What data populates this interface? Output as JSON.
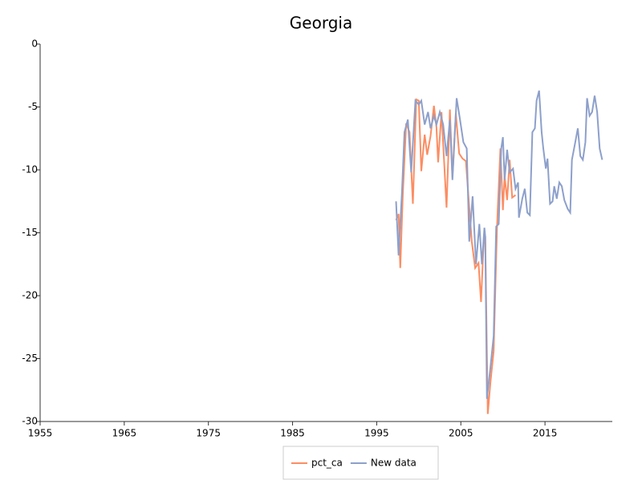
{
  "chart_data": {
    "type": "line",
    "title": "Georgia",
    "xlim": [
      1955,
      2023
    ],
    "xticks": [
      1955,
      1965,
      1975,
      1985,
      1995,
      2005,
      2015
    ],
    "ylim": [
      -30,
      0
    ],
    "yticks": [
      0,
      -5,
      -10,
      -15,
      -20,
      -25,
      -30
    ],
    "series": [
      {
        "name": "pct_ca",
        "color": "#fc8d62",
        "x": [
          1997.3,
          1997.6,
          1997.8,
          1998.1,
          1998.5,
          1998.9,
          1999.3,
          1999.7,
          2000.0,
          2000.3,
          2000.7,
          2001.0,
          2001.4,
          2001.8,
          2002.1,
          2002.3,
          2002.7,
          2003.3,
          2003.7,
          2004.0,
          2004.4,
          2004.8,
          2005.2,
          2005.6,
          2006.0,
          2006.3,
          2006.7,
          2007.1,
          2007.4,
          2007.7,
          2007.9,
          2008.2,
          2008.5,
          2008.9,
          2009.3,
          2009.7,
          2010.0,
          2010.2,
          2010.5,
          2010.8,
          2011.1,
          2011.5
        ],
        "values": [
          -14,
          -13.5,
          -17.8,
          -12,
          -6.3,
          -7,
          -12.7,
          -4.4,
          -4.5,
          -10.1,
          -7.2,
          -8.8,
          -7.3,
          -4.9,
          -6.6,
          -9.4,
          -5.4,
          -13,
          -5.2,
          -10.6,
          -5.5,
          -8.7,
          -9.1,
          -9.3,
          -13,
          -15.7,
          -17.8,
          -17.4,
          -20.5,
          -15.9,
          -15.3,
          -29.4,
          -27,
          -24.4,
          -14.5,
          -8.3,
          -13.2,
          -10.5,
          -12.4,
          -9.2,
          -12.2,
          -12
        ]
      },
      {
        "name": "New data",
        "color": "#8da0cb",
        "x": [
          1997.3,
          1997.6,
          1998.0,
          1998.3,
          1998.7,
          1999.1,
          1999.6,
          2000.0,
          2000.3,
          2000.7,
          2001.1,
          2001.4,
          2001.8,
          2002.1,
          2002.5,
          2002.9,
          2003.3,
          2003.7,
          2004.0,
          2004.5,
          2004.9,
          2005.3,
          2005.7,
          2006.0,
          2006.4,
          2006.8,
          2007.2,
          2007.5,
          2007.8,
          2007.9,
          2008.1,
          2008.5,
          2008.9,
          2009.2,
          2009.5,
          2009.8,
          2010.0,
          2010.2,
          2010.5,
          2010.8,
          2011.2,
          2011.5,
          2011.8,
          2011.9,
          2012.3,
          2012.6,
          2012.9,
          2013.2,
          2013.5,
          2013.8,
          2014.0,
          2014.3,
          2014.6,
          2014.8,
          2015.1,
          2015.3,
          2015.6,
          2015.9,
          2016.1,
          2016.4,
          2016.7,
          2017.0,
          2017.3,
          2017.7,
          2018.0,
          2018.2,
          2018.6,
          2018.9,
          2019.2,
          2019.5,
          2019.8,
          2020.0,
          2020.3,
          2020.6,
          2020.9,
          2021.2,
          2021.5,
          2021.8
        ],
        "values": [
          -12.5,
          -16.8,
          -11.8,
          -7,
          -6,
          -10.2,
          -4.5,
          -4.8,
          -4.5,
          -6.4,
          -5.4,
          -6.7,
          -5.7,
          -6.4,
          -5.4,
          -6.4,
          -8.9,
          -6,
          -10.8,
          -4.3,
          -6,
          -7.8,
          -8.3,
          -15.7,
          -12.1,
          -17.5,
          -14.3,
          -17.5,
          -14.6,
          -15.3,
          -28.2,
          -25.8,
          -23.2,
          -14.5,
          -14.3,
          -8.3,
          -7.4,
          -10.8,
          -8.4,
          -10.2,
          -9.9,
          -11.5,
          -11,
          -13.8,
          -12.3,
          -11.5,
          -13.4,
          -13.6,
          -7,
          -6.7,
          -4.5,
          -3.7,
          -7,
          -8.3,
          -9.9,
          -9.1,
          -12.7,
          -12.5,
          -11.3,
          -12.3,
          -11,
          -11.3,
          -12.4,
          -13.1,
          -13.4,
          -9.2,
          -7.8,
          -6.7,
          -8.9,
          -9.2,
          -7.8,
          -4.3,
          -5.7,
          -5.4,
          -4.1,
          -5.4,
          -8.3,
          -9.2
        ]
      }
    ]
  }
}
